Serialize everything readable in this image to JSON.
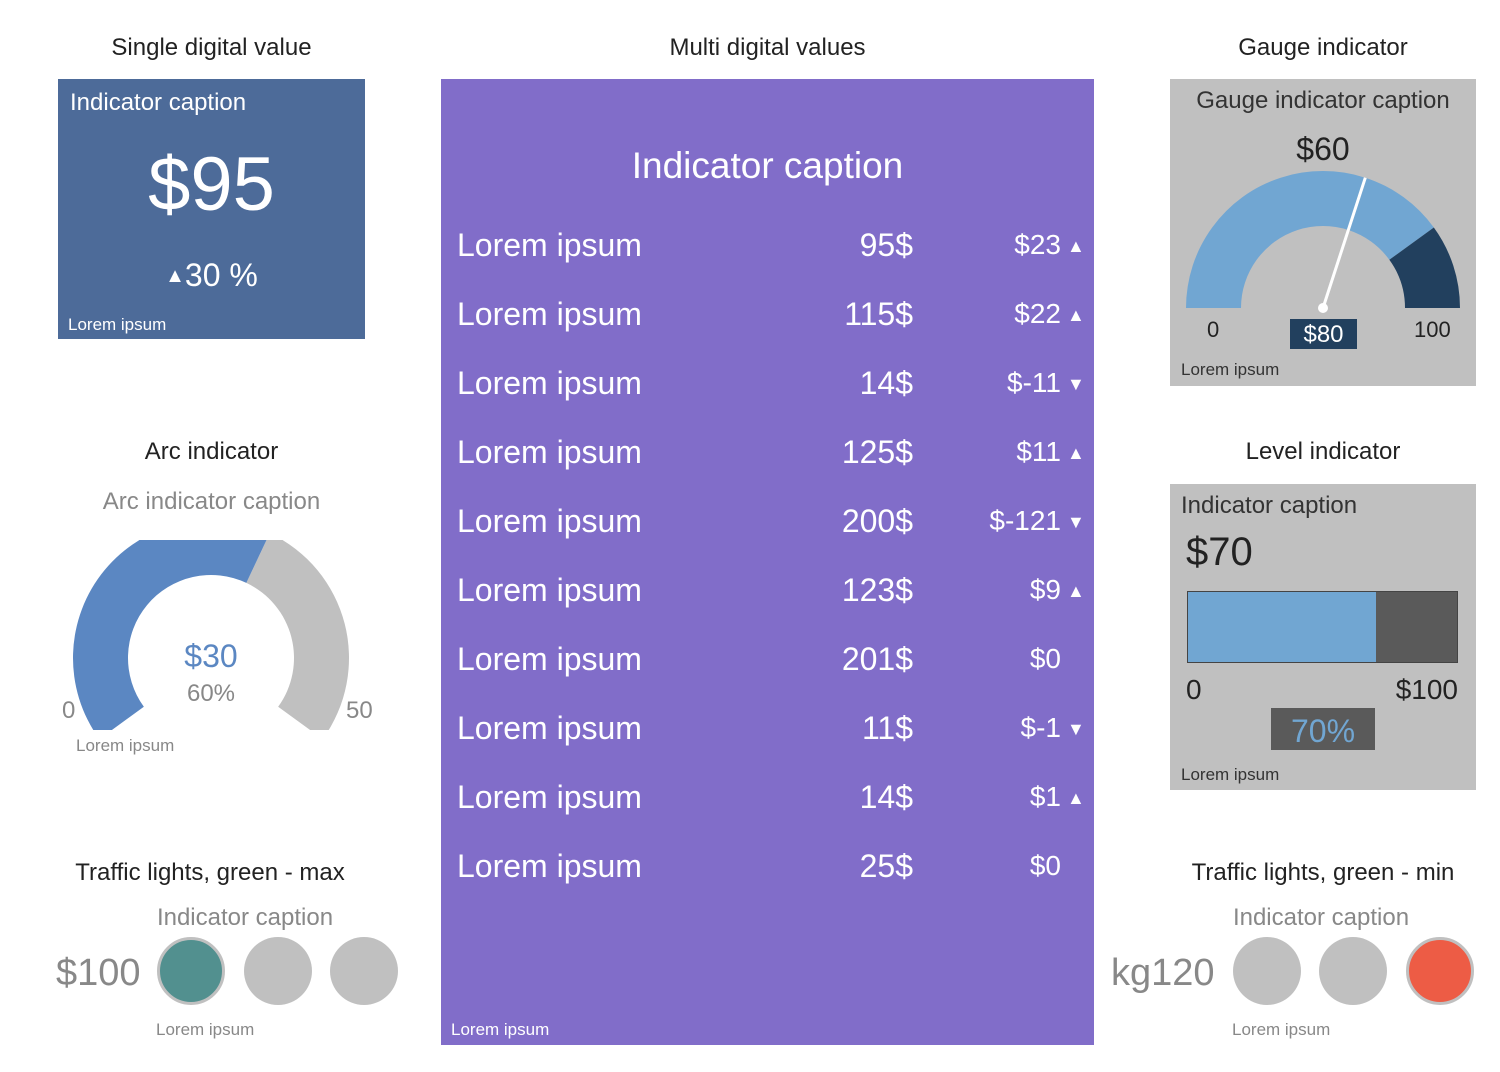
{
  "titles": {
    "single": "Single digital value",
    "multi": "Multi digital values",
    "gauge": "Gauge indicator",
    "arc": "Arc indicator",
    "level": "Level indicator",
    "traffic_max": "Traffic lights, green - max",
    "traffic_min": "Traffic lights, green - min"
  },
  "single": {
    "caption": "Indicator caption",
    "value": "$95",
    "arrow": "▲",
    "percent": "30 %",
    "footer": "Lorem ipsum"
  },
  "multi": {
    "caption": "Indicator caption",
    "footer": "Lorem ipsum",
    "rows": [
      {
        "label": "Lorem ipsum",
        "value": "95$",
        "change": "$23",
        "arrow": "▲"
      },
      {
        "label": "Lorem ipsum",
        "value": "115$",
        "change": "$22",
        "arrow": "▲"
      },
      {
        "label": "Lorem ipsum",
        "value": "14$",
        "change": "$-11",
        "arrow": "▼"
      },
      {
        "label": "Lorem ipsum",
        "value": "125$",
        "change": "$11",
        "arrow": "▲"
      },
      {
        "label": "Lorem ipsum",
        "value": "200$",
        "change": "$-121",
        "arrow": "▼"
      },
      {
        "label": "Lorem ipsum",
        "value": "123$",
        "change": "$9",
        "arrow": "▲"
      },
      {
        "label": "Lorem ipsum",
        "value": "201$",
        "change": "$0",
        "arrow": ""
      },
      {
        "label": "Lorem ipsum",
        "value": "11$",
        "change": "$-1",
        "arrow": "▼"
      },
      {
        "label": "Lorem ipsum",
        "value": "14$",
        "change": "$1",
        "arrow": "▲"
      },
      {
        "label": "Lorem ipsum",
        "value": "25$",
        "change": "$0",
        "arrow": ""
      }
    ]
  },
  "gauge": {
    "caption": "Gauge indicator caption",
    "value": "$60",
    "min": "0",
    "max": "100",
    "badge": "$80",
    "footer": "Lorem ipsum",
    "needle_value": 60,
    "threshold_value": 80,
    "scale_max": 100,
    "colors": {
      "normal": "#71a6d2",
      "alert": "#22405e",
      "needle": "#ffffff"
    }
  },
  "arc": {
    "caption": "Arc indicator caption",
    "value": "$30",
    "percent": "60%",
    "min": "0",
    "max": "50",
    "footer": "Lorem ipsum",
    "fraction": 0.6,
    "colors": {
      "fill": "#5b87c2",
      "track": "#c0c0c0",
      "value_text": "#5b87c2"
    }
  },
  "level": {
    "caption": "Indicator caption",
    "value": "$70",
    "min": "0",
    "max": "$100",
    "percent": "70%",
    "footer": "Lorem ipsum",
    "fraction": 0.7
  },
  "traffic_max": {
    "caption": "Indicator caption",
    "value": "$100",
    "footer": "Lorem ipsum",
    "active_light": 1,
    "active_color": "#52908f"
  },
  "traffic_min": {
    "caption": "Indicator caption",
    "value": "kg120",
    "footer": "Lorem ipsum",
    "active_light": 3,
    "active_color": "#ed5c45"
  }
}
